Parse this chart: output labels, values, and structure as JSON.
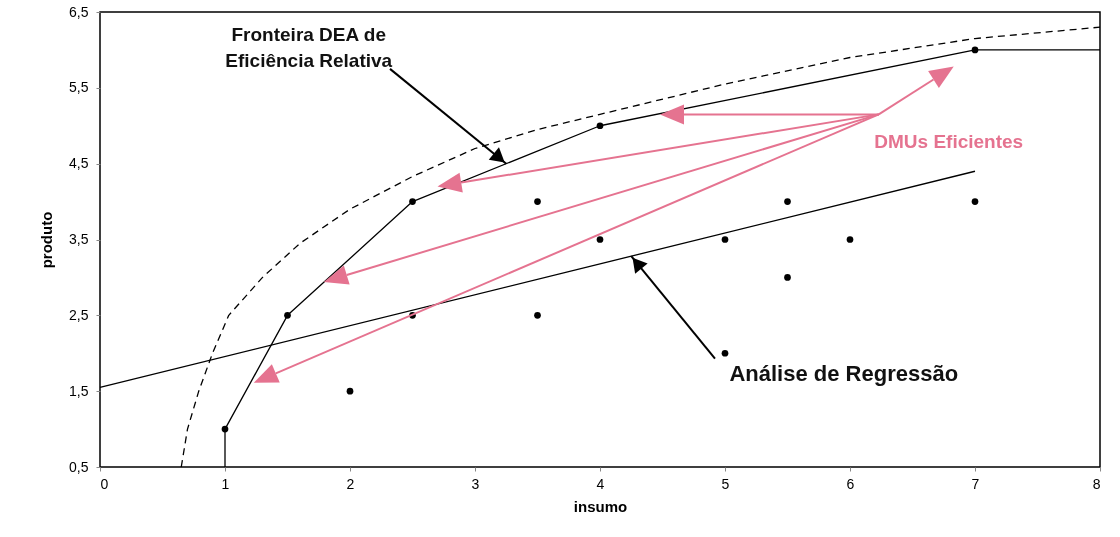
{
  "chart_data": {
    "type": "scatter",
    "xlabel": "insumo",
    "ylabel": "produto",
    "xlim": [
      0,
      8
    ],
    "xticks": [
      0,
      1,
      2,
      3,
      4,
      5,
      6,
      7,
      8
    ],
    "ylim": [
      0.5,
      6.5
    ],
    "yticks": [
      {
        "value": 0.5,
        "label": "0,5"
      },
      {
        "value": 1.5,
        "label": "1,5"
      },
      {
        "value": 2.5,
        "label": "2,5"
      },
      {
        "value": 3.5,
        "label": "3,5"
      },
      {
        "value": 4.5,
        "label": "4,5"
      },
      {
        "value": 5.5,
        "label": "5,5"
      },
      {
        "value": 6.5,
        "label": "6,5"
      }
    ],
    "grid": false,
    "series": [
      {
        "type": "line",
        "line_style": "dashed",
        "color": "#000000",
        "x": [
          0.65,
          0.7,
          0.79,
          0.9,
          1.03,
          1.3,
          1.6,
          2.0,
          2.5,
          3.0,
          3.5,
          4.0,
          5.0,
          6.0,
          7.0,
          8.0
        ],
        "values": [
          0.5,
          1.0,
          1.5,
          2.0,
          2.5,
          3.0,
          3.45,
          3.9,
          4.33,
          4.7,
          4.95,
          5.15,
          5.55,
          5.9,
          6.15,
          6.3
        ]
      },
      {
        "type": "line",
        "line_style": "solid",
        "color": "#000000",
        "x": [
          1,
          1,
          1.5,
          2.5,
          4,
          7,
          8
        ],
        "values": [
          0.5,
          1,
          2.5,
          4,
          5,
          6,
          6
        ]
      },
      {
        "type": "line",
        "line_style": "solid",
        "color": "#000000",
        "x": [
          0,
          7
        ],
        "values": [
          1.55,
          4.4
        ]
      },
      {
        "type": "scatter",
        "marker": "circle",
        "color": "#000000",
        "x": [
          1,
          1.5,
          2.5,
          4,
          7,
          2,
          2.5,
          3.5,
          3.5,
          4,
          5,
          5,
          5.5,
          5.5,
          6,
          7
        ],
        "values": [
          1,
          2.5,
          4,
          5,
          6,
          1.5,
          2.5,
          2.5,
          4,
          3.5,
          3.5,
          2,
          4,
          3,
          3.5,
          4
        ]
      }
    ],
    "annotations": [
      {
        "text": "Fronteira DEA de\nEficiência Relativa",
        "x": 3.25,
        "y": 4.5
      },
      "DMUs Eficientes",
      {
        "text": "Análise de Regressão",
        "x": 4.25,
        "y": 3.28
      }
    ]
  }
}
